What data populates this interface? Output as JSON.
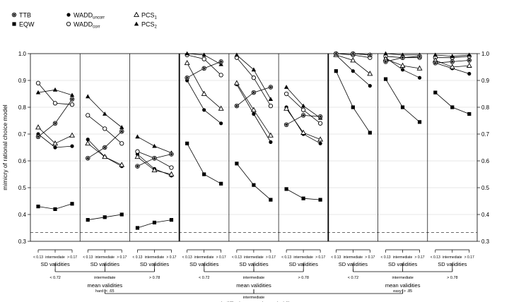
{
  "chart_data": {
    "type": "line",
    "ylabel": "mimicry of rational choice model",
    "ylim": [
      0.3,
      1.0
    ],
    "yticks": [
      "0.3",
      "0.4",
      "0.5",
      "0.6",
      "0.7",
      "0.8",
      "0.9",
      "1.0"
    ],
    "reference_line": 0.333,
    "x_tick_labels": [
      "< 0.13",
      "intermediate",
      "> 0.17"
    ],
    "sd_label": "SD validities",
    "mean_label": "mean validities",
    "mean_labels": [
      "< 0.72",
      "intermediate",
      "> 0.78"
    ],
    "difficulty_title": "task difficulty: posterior probability",
    "difficulty_labels": [
      "hard: < .65",
      "intermediate",
      "easy: > .85"
    ],
    "legend": [
      {
        "key": "TTB",
        "label": "TTB",
        "sub": "",
        "marker": "asterisk"
      },
      {
        "key": "EQW",
        "label": "EQW",
        "sub": "",
        "marker": "square"
      },
      {
        "key": "WADD_uncorr",
        "label": "WADD",
        "sub": "uncorr",
        "marker": "dot"
      },
      {
        "key": "WADD_corr",
        "label": "WADD",
        "sub": "corr",
        "marker": "circle"
      },
      {
        "key": "PCS1",
        "label": "PCS",
        "sub": "1",
        "marker": "triangle-open"
      },
      {
        "key": "PCS2",
        "label": "PCS",
        "sub": "2",
        "marker": "triangle"
      }
    ],
    "panels": [
      {
        "TTB": [
          0.69,
          0.74,
          0.83
        ],
        "EQW": [
          0.43,
          0.42,
          0.44
        ],
        "WADD_uncorr": [
          0.7,
          0.65,
          0.655
        ],
        "WADD_corr": [
          0.89,
          0.815,
          0.81
        ],
        "PCS1": [
          0.725,
          0.665,
          0.695
        ],
        "PCS2": [
          0.855,
          0.865,
          0.845
        ]
      },
      {
        "TTB": [
          0.61,
          0.65,
          0.71
        ],
        "EQW": [
          0.38,
          0.39,
          0.4
        ],
        "WADD_uncorr": [
          0.68,
          0.615,
          0.58
        ],
        "WADD_corr": [
          0.77,
          0.72,
          0.665
        ],
        "PCS1": [
          0.665,
          0.615,
          0.585
        ],
        "PCS2": [
          0.84,
          0.775,
          0.725
        ]
      },
      {
        "TTB": [
          0.58,
          0.61,
          0.625
        ],
        "EQW": [
          0.35,
          0.37,
          0.38
        ],
        "WADD_uncorr": [
          0.625,
          0.57,
          0.545
        ],
        "WADD_corr": [
          0.635,
          0.61,
          0.575
        ],
        "PCS1": [
          0.615,
          0.565,
          0.55
        ],
        "PCS2": [
          0.69,
          0.655,
          0.63
        ]
      },
      {
        "TTB": [
          0.91,
          0.945,
          0.97
        ],
        "EQW": [
          0.665,
          0.55,
          0.515
        ],
        "WADD_uncorr": [
          0.9,
          0.79,
          0.74
        ],
        "WADD_corr": [
          0.995,
          0.98,
          0.92
        ],
        "PCS1": [
          0.965,
          0.85,
          0.795
        ],
        "PCS2": [
          1.0,
          0.995,
          0.96
        ]
      },
      {
        "TTB": [
          0.805,
          0.855,
          0.875
        ],
        "EQW": [
          0.59,
          0.51,
          0.455
        ],
        "WADD_uncorr": [
          0.885,
          0.775,
          0.67
        ],
        "WADD_corr": [
          0.985,
          0.91,
          0.805
        ],
        "PCS1": [
          0.89,
          0.79,
          0.695
        ],
        "PCS2": [
          0.995,
          0.94,
          0.83
        ]
      },
      {
        "TTB": [
          0.735,
          0.77,
          0.765
        ],
        "EQW": [
          0.495,
          0.46,
          0.455
        ],
        "WADD_uncorr": [
          0.8,
          0.7,
          0.665
        ],
        "WADD_corr": [
          0.85,
          0.79,
          0.74
        ],
        "PCS1": [
          0.795,
          0.705,
          0.68
        ],
        "PCS2": [
          0.875,
          0.805,
          0.76
        ]
      },
      {
        "TTB": [
          1.0,
          1.0,
          0.995
        ],
        "EQW": [
          0.935,
          0.8,
          0.705
        ],
        "WADD_uncorr": [
          0.995,
          0.935,
          0.88
        ],
        "WADD_corr": [
          1.0,
          0.995,
          0.985
        ],
        "PCS1": [
          0.995,
          0.975,
          0.925
        ],
        "PCS2": [
          1.0,
          1.0,
          0.995
        ]
      },
      {
        "TTB": [
          0.97,
          0.985,
          0.99
        ],
        "EQW": [
          0.905,
          0.8,
          0.745
        ],
        "WADD_uncorr": [
          0.985,
          0.94,
          0.91
        ],
        "WADD_corr": [
          0.99,
          0.985,
          0.985
        ],
        "PCS1": [
          0.98,
          0.955,
          0.945
        ],
        "PCS2": [
          1.0,
          0.995,
          0.995
        ]
      },
      {
        "TTB": [
          0.965,
          0.97,
          0.975
        ],
        "EQW": [
          0.855,
          0.8,
          0.775
        ],
        "WADD_uncorr": [
          0.965,
          0.945,
          0.925
        ],
        "WADD_corr": [
          0.985,
          0.985,
          0.99
        ],
        "PCS1": [
          0.975,
          0.95,
          0.955
        ],
        "PCS2": [
          0.995,
          0.99,
          0.995
        ]
      }
    ]
  }
}
